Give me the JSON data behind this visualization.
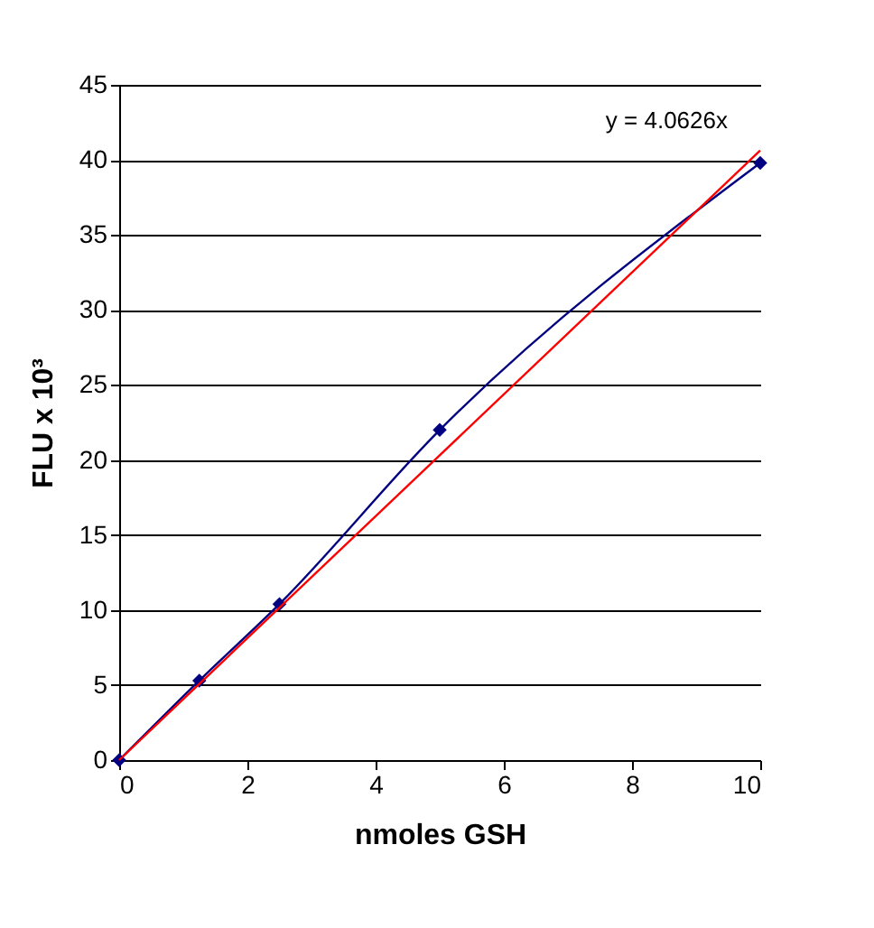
{
  "chart_data": {
    "type": "line",
    "xlabel": "nmoles GSH",
    "ylabel": "FLU x 10³",
    "xlim": [
      0,
      10
    ],
    "xticks": [
      0,
      2,
      4,
      6,
      8,
      10
    ],
    "ylim": [
      0,
      45
    ],
    "yticks": [
      0,
      5,
      10,
      15,
      20,
      25,
      30,
      35,
      40,
      45
    ],
    "grid": "y",
    "annotations": [
      "y = 4.0626x"
    ],
    "series": [
      {
        "color": "#000080",
        "marker": "diamond",
        "line_style": "solid",
        "x": [
          0,
          1.25,
          2.5,
          5,
          10
        ],
        "values": [
          0,
          5.3,
          10.4,
          22,
          39.8
        ]
      },
      {
        "color": "#ff0000",
        "marker": "none",
        "line_style": "solid",
        "x": [
          0,
          10
        ],
        "values": [
          0,
          40.626
        ]
      }
    ]
  }
}
